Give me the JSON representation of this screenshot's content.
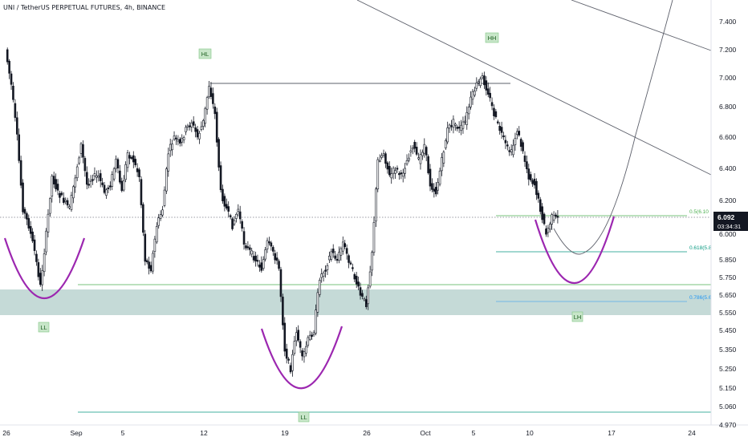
{
  "title": "UNI / TetherUS PERPETUAL FUTURES, 4h, BINANCE",
  "colors": {
    "candle": "#131722",
    "trendline": "#5d606b",
    "arc": "#9c27b0",
    "fib_green": "#4caf50",
    "fib_teal": "#089981",
    "fib_blue": "#2196f3",
    "zone_fill": "#b2cdc9",
    "label_fill": "#c8e6c9",
    "label_text": "#1b5e20",
    "price_tag_bg": "#131722",
    "price_tag_text": "#ffffff"
  },
  "chart_data": {
    "type": "candlestick",
    "symbol": "UNI / TetherUS PERPETUAL FUTURES",
    "timeframe": "4h",
    "exchange": "BINANCE",
    "x_ticks": [
      "26",
      "Sep",
      "5",
      "12",
      "19",
      "26",
      "Oct",
      "5",
      "10",
      "17",
      "24"
    ],
    "y_ticks": [
      "7.400",
      "7.200",
      "7.000",
      "6.800",
      "6.600",
      "6.400",
      "6.200",
      "6.000",
      "5.850",
      "5.750",
      "5.650",
      "5.550",
      "5.450",
      "5.350",
      "5.250",
      "5.150",
      "5.060",
      "4.970"
    ],
    "current_price": "6.092",
    "countdown": "03:34:31",
    "fib_levels": [
      {
        "label": "0.5(6.10",
        "price": 6.1
      },
      {
        "label": "0.618(5.8",
        "price": 5.89
      },
      {
        "label": "0.786(5.6",
        "price": 5.62
      }
    ],
    "structure_labels": [
      "HL",
      "HH",
      "LL",
      "LL",
      "LH"
    ],
    "price_path": [
      [
        "2021-08-26 00:00",
        7.2
      ],
      [
        "2021-08-26 12:00",
        6.95
      ],
      [
        "2021-08-27 00:00",
        6.6
      ],
      [
        "2021-08-27 12:00",
        6.15
      ],
      [
        "2021-08-28 00:00",
        6.05
      ],
      [
        "2021-08-28 12:00",
        5.9
      ],
      [
        "2021-08-29 00:00",
        5.7
      ],
      [
        "2021-08-29 12:00",
        6.0
      ],
      [
        "2021-08-30 00:00",
        6.35
      ],
      [
        "2021-08-30 12:00",
        6.25
      ],
      [
        "2021-08-31 00:00",
        6.2
      ],
      [
        "2021-08-31 12:00",
        6.15
      ],
      [
        "2021-09-01 00:00",
        6.35
      ],
      [
        "2021-09-01 12:00",
        6.55
      ],
      [
        "2021-09-02 00:00",
        6.3
      ],
      [
        "2021-09-02 12:00",
        6.35
      ],
      [
        "2021-09-03 00:00",
        6.35
      ],
      [
        "2021-09-03 12:00",
        6.25
      ],
      [
        "2021-09-04 00:00",
        6.3
      ],
      [
        "2021-09-04 12:00",
        6.45
      ],
      [
        "2021-09-05 00:00",
        6.25
      ],
      [
        "2021-09-05 12:00",
        6.5
      ],
      [
        "2021-09-06 00:00",
        6.45
      ],
      [
        "2021-09-06 12:00",
        6.35
      ],
      [
        "2021-09-07 00:00",
        5.85
      ],
      [
        "2021-09-07 12:00",
        5.8
      ],
      [
        "2021-09-08 00:00",
        6.05
      ],
      [
        "2021-09-08 12:00",
        6.15
      ],
      [
        "2021-09-09 00:00",
        6.5
      ],
      [
        "2021-09-09 12:00",
        6.6
      ],
      [
        "2021-09-10 00:00",
        6.55
      ],
      [
        "2021-09-10 12:00",
        6.65
      ],
      [
        "2021-09-11 00:00",
        6.7
      ],
      [
        "2021-09-11 12:00",
        6.6
      ],
      [
        "2021-09-12 00:00",
        6.7
      ],
      [
        "2021-09-12 12:00",
        6.95
      ],
      [
        "2021-09-13 00:00",
        6.75
      ],
      [
        "2021-09-13 12:00",
        6.25
      ],
      [
        "2021-09-14 00:00",
        6.15
      ],
      [
        "2021-09-14 12:00",
        6.05
      ],
      [
        "2021-09-15 00:00",
        6.15
      ],
      [
        "2021-09-15 12:00",
        5.95
      ],
      [
        "2021-09-16 00:00",
        5.9
      ],
      [
        "2021-09-16 12:00",
        5.85
      ],
      [
        "2021-09-17 00:00",
        5.8
      ],
      [
        "2021-09-17 12:00",
        5.95
      ],
      [
        "2021-09-18 00:00",
        5.9
      ],
      [
        "2021-09-18 12:00",
        5.8
      ],
      [
        "2021-09-19 00:00",
        5.35
      ],
      [
        "2021-09-19 12:00",
        5.25
      ],
      [
        "2021-09-20 00:00",
        5.45
      ],
      [
        "2021-09-20 12:00",
        5.3
      ],
      [
        "2021-09-21 00:00",
        5.4
      ],
      [
        "2021-09-21 12:00",
        5.45
      ],
      [
        "2021-09-22 00:00",
        5.75
      ],
      [
        "2021-09-22 12:00",
        5.8
      ],
      [
        "2021-09-23 00:00",
        5.9
      ],
      [
        "2021-09-23 12:00",
        5.85
      ],
      [
        "2021-09-24 00:00",
        5.95
      ],
      [
        "2021-09-24 12:00",
        5.85
      ],
      [
        "2021-09-25 00:00",
        5.75
      ],
      [
        "2021-09-25 12:00",
        5.65
      ],
      [
        "2021-09-26 00:00",
        5.6
      ],
      [
        "2021-09-26 12:00",
        5.9
      ],
      [
        "2021-09-27 00:00",
        6.45
      ],
      [
        "2021-09-27 12:00",
        6.5
      ],
      [
        "2021-09-28 00:00",
        6.35
      ],
      [
        "2021-09-28 12:00",
        6.4
      ],
      [
        "2021-09-29 00:00",
        6.35
      ],
      [
        "2021-09-29 12:00",
        6.45
      ],
      [
        "2021-09-30 00:00",
        6.55
      ],
      [
        "2021-09-30 12:00",
        6.45
      ],
      [
        "2021-10-01 00:00",
        6.55
      ],
      [
        "2021-10-01 12:00",
        6.3
      ],
      [
        "2021-10-02 00:00",
        6.25
      ],
      [
        "2021-10-02 12:00",
        6.45
      ],
      [
        "2021-10-03 00:00",
        6.65
      ],
      [
        "2021-10-03 12:00",
        6.7
      ],
      [
        "2021-10-04 00:00",
        6.65
      ],
      [
        "2021-10-04 12:00",
        6.7
      ],
      [
        "2021-10-05 00:00",
        6.85
      ],
      [
        "2021-10-05 12:00",
        6.95
      ],
      [
        "2021-10-06 00:00",
        7.0
      ],
      [
        "2021-10-06 12:00",
        6.9
      ],
      [
        "2021-10-07 00:00",
        6.75
      ],
      [
        "2021-10-07 12:00",
        6.65
      ],
      [
        "2021-10-08 00:00",
        6.55
      ],
      [
        "2021-10-08 12:00",
        6.5
      ],
      [
        "2021-10-09 00:00",
        6.65
      ],
      [
        "2021-10-09 12:00",
        6.5
      ],
      [
        "2021-10-10 00:00",
        6.35
      ],
      [
        "2021-10-10 12:00",
        6.3
      ],
      [
        "2021-10-11 00:00",
        6.15
      ],
      [
        "2021-10-11 12:00",
        6.0
      ],
      [
        "2021-10-12 00:00",
        6.1
      ],
      [
        "2021-10-12 12:00",
        6.092
      ]
    ]
  }
}
